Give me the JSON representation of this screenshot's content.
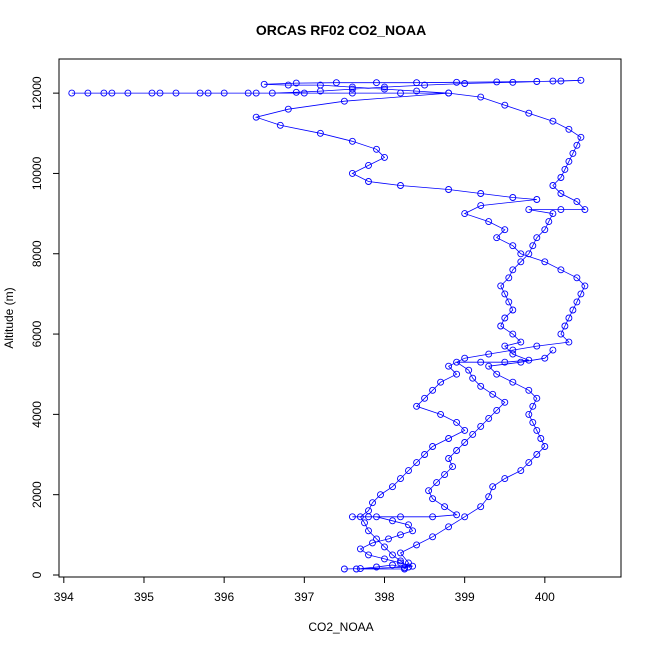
{
  "chart_data": {
    "type": "scatter",
    "title": "ORCAS RF02 CO2_NOAA",
    "xlabel": "CO2_NOAA",
    "ylabel": "Altitude (m)",
    "xlim": [
      393.94,
      400.95
    ],
    "ylim": [
      -50,
      12850
    ],
    "x_ticks": [
      394,
      395,
      396,
      397,
      398,
      399,
      400
    ],
    "y_ticks": [
      0,
      2000,
      4000,
      6000,
      8000,
      10000,
      12000
    ],
    "point_style": "open-circle",
    "line_connected": true,
    "grid": false,
    "legend": "none",
    "colors": {
      "series": "#0000ff",
      "axes": "#000000",
      "background": "#ffffff"
    },
    "series": [
      {
        "values": [
          [
            397.5,
            150
          ],
          [
            397.7,
            160
          ],
          [
            397.9,
            200
          ],
          [
            398.1,
            250
          ],
          [
            398.25,
            180
          ],
          [
            398.35,
            220
          ],
          [
            398.2,
            300
          ],
          [
            398.0,
            400
          ],
          [
            397.8,
            500
          ],
          [
            397.7,
            650
          ],
          [
            397.85,
            800
          ],
          [
            398.05,
            900
          ],
          [
            398.2,
            1000
          ],
          [
            398.35,
            1100
          ],
          [
            398.3,
            1250
          ],
          [
            398.1,
            1350
          ],
          [
            397.9,
            1450
          ],
          [
            397.6,
            1450
          ],
          [
            397.8,
            1450
          ],
          [
            398.2,
            1450
          ],
          [
            398.6,
            1450
          ],
          [
            398.9,
            1500
          ],
          [
            398.75,
            1700
          ],
          [
            398.6,
            1900
          ],
          [
            398.55,
            2100
          ],
          [
            398.65,
            2300
          ],
          [
            398.75,
            2500
          ],
          [
            398.85,
            2700
          ],
          [
            398.8,
            2900
          ],
          [
            398.9,
            3100
          ],
          [
            399.0,
            3300
          ],
          [
            399.1,
            3500
          ],
          [
            399.2,
            3700
          ],
          [
            399.3,
            3900
          ],
          [
            399.4,
            4100
          ],
          [
            399.5,
            4300
          ],
          [
            399.35,
            4500
          ],
          [
            399.2,
            4700
          ],
          [
            399.1,
            4900
          ],
          [
            399.05,
            5100
          ],
          [
            398.9,
            5300
          ],
          [
            399.2,
            5300
          ],
          [
            399.5,
            5300
          ],
          [
            399.8,
            5350
          ],
          [
            399.6,
            5500
          ],
          [
            399.5,
            5700
          ],
          [
            399.7,
            5800
          ],
          [
            399.6,
            6000
          ],
          [
            399.45,
            6200
          ],
          [
            399.5,
            6400
          ],
          [
            399.6,
            6600
          ],
          [
            399.55,
            6800
          ],
          [
            399.5,
            7000
          ],
          [
            399.45,
            7200
          ],
          [
            399.55,
            7400
          ],
          [
            399.6,
            7600
          ],
          [
            399.7,
            7800
          ],
          [
            399.8,
            8000
          ],
          [
            399.85,
            8200
          ],
          [
            399.9,
            8400
          ],
          [
            400.0,
            8600
          ],
          [
            400.05,
            8800
          ],
          [
            400.1,
            9000
          ],
          [
            399.8,
            9100
          ],
          [
            400.2,
            9100
          ],
          [
            400.5,
            9100
          ],
          [
            400.4,
            9300
          ],
          [
            400.2,
            9500
          ],
          [
            400.1,
            9700
          ],
          [
            400.2,
            9900
          ],
          [
            400.25,
            10100
          ],
          [
            400.3,
            10300
          ],
          [
            400.35,
            10500
          ],
          [
            400.4,
            10700
          ],
          [
            400.45,
            10900
          ],
          [
            400.3,
            11100
          ],
          [
            400.1,
            11300
          ],
          [
            399.8,
            11500
          ],
          [
            399.5,
            11700
          ],
          [
            399.2,
            11900
          ],
          [
            398.8,
            12000
          ],
          [
            398.4,
            12050
          ],
          [
            398.0,
            12100
          ],
          [
            397.6,
            12150
          ],
          [
            397.2,
            12200
          ],
          [
            396.8,
            12200
          ],
          [
            396.5,
            12220
          ],
          [
            396.9,
            12250
          ],
          [
            397.4,
            12260
          ],
          [
            397.9,
            12260
          ],
          [
            398.4,
            12260
          ],
          [
            398.9,
            12270
          ],
          [
            399.4,
            12280
          ],
          [
            399.9,
            12290
          ],
          [
            400.2,
            12300
          ],
          [
            400.45,
            12320
          ],
          [
            400.1,
            12300
          ],
          [
            399.6,
            12270
          ],
          [
            399.0,
            12240
          ],
          [
            398.5,
            12200
          ],
          [
            398.0,
            12150
          ],
          [
            397.6,
            12100
          ],
          [
            397.2,
            12050
          ],
          [
            396.9,
            12020
          ],
          [
            396.6,
            12000
          ],
          [
            396.3,
            12000
          ],
          [
            396.0,
            12000
          ],
          [
            395.7,
            12000
          ],
          [
            395.4,
            12000
          ],
          [
            395.1,
            12000
          ],
          [
            394.8,
            12000
          ],
          [
            394.5,
            12000
          ],
          [
            394.3,
            12000
          ],
          [
            394.1,
            12000
          ],
          [
            394.6,
            12000
          ],
          [
            395.2,
            12000
          ],
          [
            395.8,
            12000
          ],
          [
            396.4,
            12000
          ],
          [
            397.0,
            12000
          ],
          [
            397.6,
            12000
          ],
          [
            398.2,
            12000
          ],
          [
            398.8,
            12000
          ],
          [
            397.5,
            11800
          ],
          [
            396.8,
            11600
          ],
          [
            396.4,
            11400
          ],
          [
            396.7,
            11200
          ],
          [
            397.2,
            11000
          ],
          [
            397.6,
            10800
          ],
          [
            397.9,
            10600
          ],
          [
            398.0,
            10400
          ],
          [
            397.8,
            10200
          ],
          [
            397.6,
            10000
          ],
          [
            397.8,
            9800
          ],
          [
            398.2,
            9700
          ],
          [
            398.8,
            9600
          ],
          [
            399.2,
            9500
          ],
          [
            399.6,
            9400
          ],
          [
            399.9,
            9350
          ],
          [
            399.2,
            9200
          ],
          [
            399.0,
            9000
          ],
          [
            399.3,
            8800
          ],
          [
            399.5,
            8600
          ],
          [
            399.4,
            8400
          ],
          [
            399.6,
            8200
          ],
          [
            399.7,
            8000
          ],
          [
            400.0,
            7800
          ],
          [
            400.2,
            7600
          ],
          [
            400.4,
            7400
          ],
          [
            400.5,
            7200
          ],
          [
            400.45,
            7000
          ],
          [
            400.4,
            6800
          ],
          [
            400.35,
            6600
          ],
          [
            400.3,
            6400
          ],
          [
            400.25,
            6200
          ],
          [
            400.2,
            6000
          ],
          [
            400.3,
            5800
          ],
          [
            399.9,
            5700
          ],
          [
            399.6,
            5600
          ],
          [
            399.3,
            5500
          ],
          [
            399.0,
            5400
          ],
          [
            398.8,
            5200
          ],
          [
            398.9,
            5000
          ],
          [
            398.7,
            4800
          ],
          [
            398.6,
            4600
          ],
          [
            398.5,
            4400
          ],
          [
            398.4,
            4200
          ],
          [
            398.7,
            4000
          ],
          [
            398.9,
            3800
          ],
          [
            399.0,
            3600
          ],
          [
            398.8,
            3400
          ],
          [
            398.6,
            3200
          ],
          [
            398.5,
            3000
          ],
          [
            398.4,
            2800
          ],
          [
            398.3,
            2600
          ],
          [
            398.2,
            2400
          ],
          [
            398.1,
            2200
          ],
          [
            397.95,
            2000
          ],
          [
            397.85,
            1800
          ],
          [
            397.8,
            1600
          ],
          [
            397.7,
            1450
          ],
          [
            397.75,
            1300
          ],
          [
            397.8,
            1100
          ],
          [
            397.9,
            900
          ],
          [
            398.0,
            700
          ],
          [
            398.1,
            500
          ],
          [
            398.2,
            350
          ],
          [
            398.3,
            200
          ],
          [
            397.65,
            150
          ],
          [
            398.25,
            150
          ],
          [
            398.3,
            300
          ],
          [
            398.2,
            550
          ],
          [
            398.4,
            750
          ],
          [
            398.6,
            950
          ],
          [
            398.8,
            1200
          ],
          [
            399.0,
            1450
          ],
          [
            399.2,
            1700
          ],
          [
            399.3,
            1950
          ],
          [
            399.35,
            2200
          ],
          [
            399.5,
            2400
          ],
          [
            399.7,
            2600
          ],
          [
            399.8,
            2800
          ],
          [
            399.9,
            3000
          ],
          [
            400.0,
            3200
          ],
          [
            399.95,
            3400
          ],
          [
            399.9,
            3600
          ],
          [
            399.85,
            3800
          ],
          [
            399.8,
            4000
          ],
          [
            399.85,
            4200
          ],
          [
            399.9,
            4400
          ],
          [
            399.8,
            4600
          ],
          [
            399.6,
            4800
          ],
          [
            399.4,
            5000
          ],
          [
            399.3,
            5200
          ],
          [
            399.7,
            5300
          ],
          [
            400.0,
            5400
          ],
          [
            400.1,
            5600
          ]
        ]
      }
    ]
  }
}
